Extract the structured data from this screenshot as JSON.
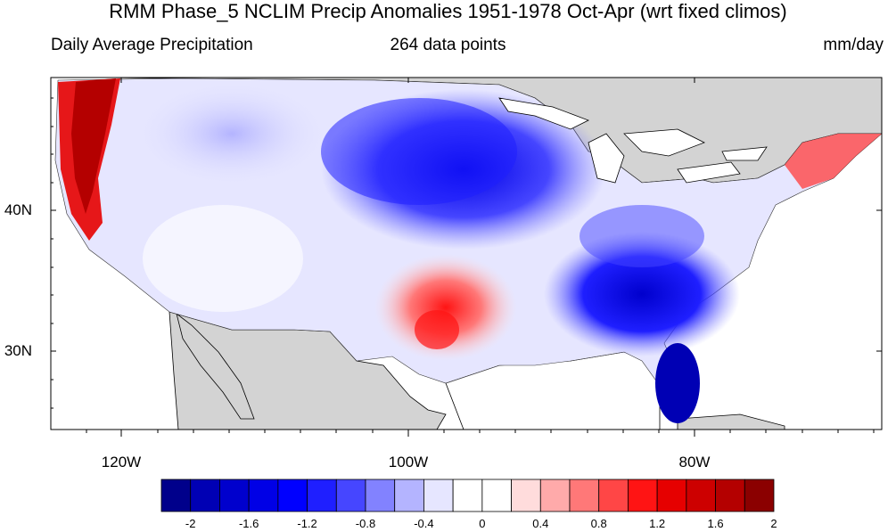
{
  "title": "RMM Phase_5 NCLIM Precip Anomalies 1951-1978 Oct-Apr (wrt fixed climos)",
  "subtitle_left": "Daily Average Precipitation",
  "subtitle_center": "264 data points",
  "subtitle_right": "mm/day",
  "map": {
    "lat_labels": [
      "40N",
      "30N"
    ],
    "lon_labels": [
      "120W",
      "100W",
      "80W"
    ],
    "land_color": "#d3d3d3",
    "ocean_color": "#ffffff"
  },
  "colorbar": {
    "colors": [
      "#00008b",
      "#0000b4",
      "#0000cd",
      "#0000e6",
      "#0000ff",
      "#1f1fff",
      "#4646ff",
      "#8282ff",
      "#b4b4ff",
      "#e6e6ff",
      "#ffffff",
      "#ffffff",
      "#ffdcdc",
      "#ffaaaa",
      "#ff7878",
      "#ff4646",
      "#ff1414",
      "#e60000",
      "#cd0000",
      "#b40000",
      "#8b0000"
    ],
    "tick_labels": [
      "-2",
      "-1.6",
      "-1.2",
      "-0.8",
      "-0.4",
      "0",
      "0.4",
      "0.8",
      "1.2",
      "1.6",
      "2"
    ]
  }
}
